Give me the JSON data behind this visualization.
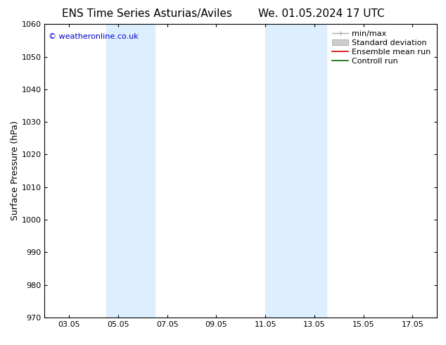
{
  "title_left": "ENS Time Series Asturias/Aviles",
  "title_right": "We. 01.05.2024 17 UTC",
  "ylabel": "Surface Pressure (hPa)",
  "ylim": [
    970,
    1060
  ],
  "yticks": [
    970,
    980,
    990,
    1000,
    1010,
    1020,
    1030,
    1040,
    1050,
    1060
  ],
  "xtick_labels": [
    "03.05",
    "05.05",
    "07.05",
    "09.05",
    "11.05",
    "13.05",
    "15.05",
    "17.05"
  ],
  "xtick_positions": [
    3,
    5,
    7,
    9,
    11,
    13,
    15,
    17
  ],
  "xlim": [
    2,
    18
  ],
  "shaded_regions": [
    {
      "xmin": 4.5,
      "xmax": 6.5,
      "color": "#ddeeff"
    },
    {
      "xmin": 11.0,
      "xmax": 13.5,
      "color": "#ddeeff"
    }
  ],
  "watermark": "© weatheronline.co.uk",
  "watermark_color": "#0000cc",
  "bg_color": "#ffffff",
  "legend_items": [
    {
      "label": "min/max",
      "color": "#aaaaaa",
      "type": "minmax"
    },
    {
      "label": "Standard deviation",
      "color": "#cccccc",
      "type": "fill"
    },
    {
      "label": "Ensemble mean run",
      "color": "#cc0000",
      "type": "line"
    },
    {
      "label": "Controll run",
      "color": "#006600",
      "type": "line"
    }
  ],
  "font_size_title": 11,
  "font_size_axis": 9,
  "font_size_tick": 8,
  "font_size_legend": 8,
  "font_size_watermark": 8
}
